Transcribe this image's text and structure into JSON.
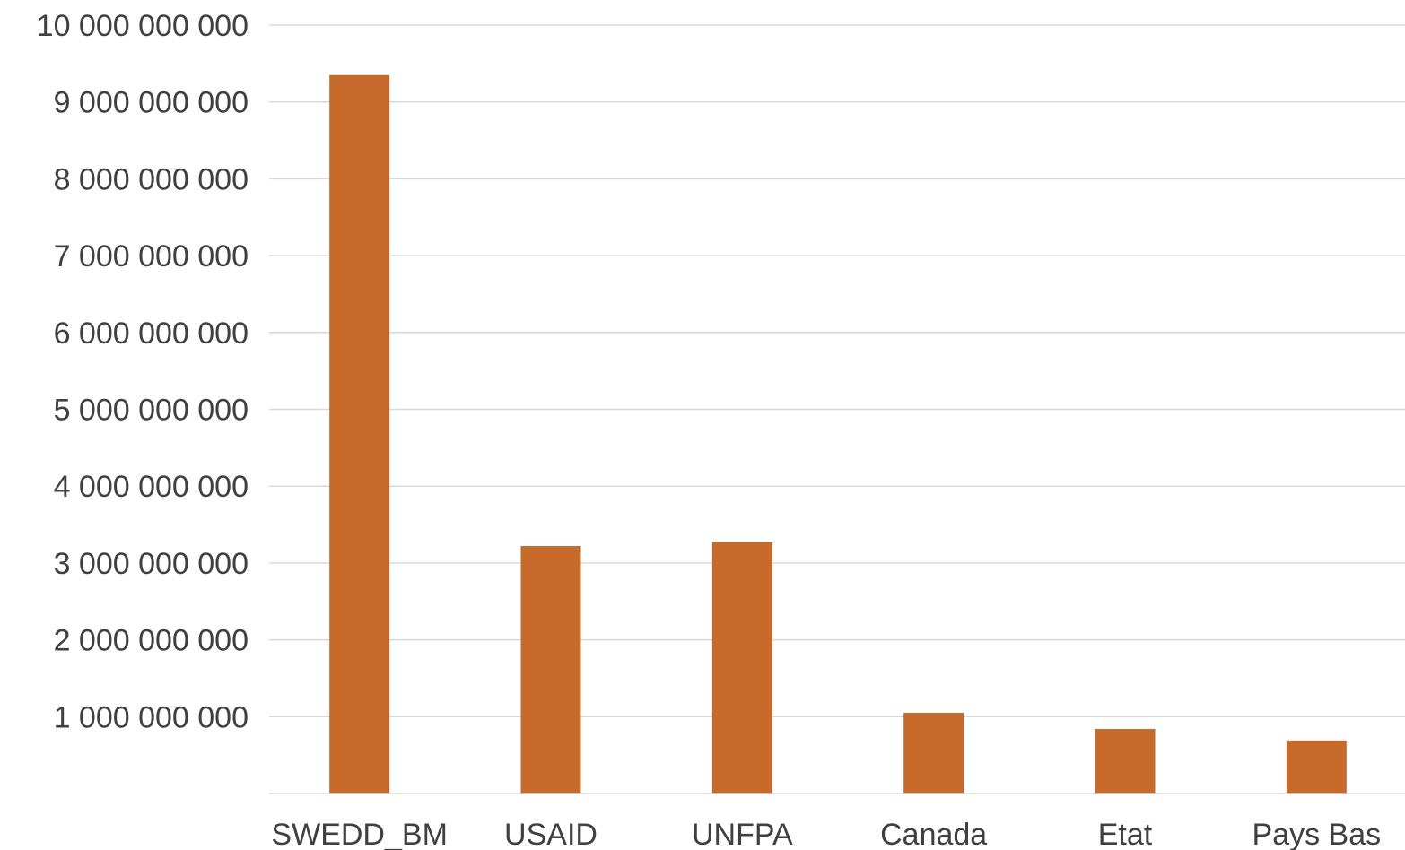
{
  "chart_data": {
    "type": "bar",
    "title": "",
    "xlabel": "",
    "ylabel": "",
    "categories": [
      "SWEDD_BM",
      "USAID",
      "UNFPA",
      "Canada",
      "Etat",
      "Pays Bas"
    ],
    "series": [
      {
        "values": [
          9350000000,
          3220000000,
          3270000000,
          1050000000,
          840000000,
          690000000
        ],
        "color": "#C76B2D"
      }
    ],
    "ylim": [
      0,
      10000000000
    ],
    "yticks": [
      1000000000,
      2000000000,
      3000000000,
      4000000000,
      5000000000,
      6000000000,
      7000000000,
      8000000000,
      9000000000,
      10000000000
    ],
    "ytick_labels": [
      "1 000 000 000",
      "2 000 000 000",
      "3 000 000 000",
      "4 000 000 000",
      "5 000 000 000",
      "6 000 000 000",
      "7 000 000 000",
      "8 000 000 000",
      "9 000 000 000",
      "10 000 000 000"
    ],
    "grid": true,
    "legend": "none",
    "gridline_color": "#D9D9D9",
    "text_color": "#404040"
  }
}
